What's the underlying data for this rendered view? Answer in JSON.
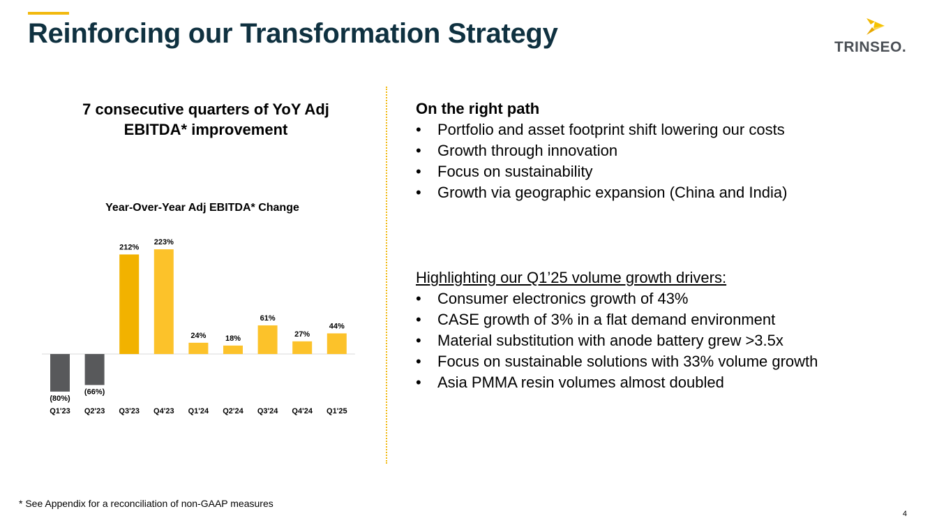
{
  "header": {
    "title": "Reinforcing our Transformation Strategy",
    "logo_text": "TRINSEO",
    "logo_trademark": "."
  },
  "left": {
    "heading_line1": "7 consecutive quarters of YoY Adj",
    "heading_line2": "EBITDA* improvement"
  },
  "chart_data": {
    "type": "bar",
    "title": "Year-Over-Year Adj EBITDA* Change",
    "categories": [
      "Q1'23",
      "Q2'23",
      "Q3'23",
      "Q4'23",
      "Q1'24",
      "Q2'24",
      "Q3'24",
      "Q4'24",
      "Q1'25"
    ],
    "values": [
      -80,
      -66,
      212,
      223,
      24,
      18,
      61,
      27,
      44
    ],
    "data_labels": [
      "(80%)",
      "(66%)",
      "212%",
      "223%",
      "24%",
      "18%",
      "61%",
      "27%",
      "44%"
    ],
    "unit": "%",
    "colors": {
      "negative": "#58595b",
      "highlight": "#f2b200",
      "positive": "#fcc22a",
      "baseline": "#d9d9d9"
    },
    "highlight_index": 2,
    "ylim": [
      -80,
      223
    ],
    "grid": false,
    "legend": "none"
  },
  "right": {
    "section1": {
      "heading": "On the right path",
      "bullets": [
        "Portfolio and asset footprint shift lowering our costs",
        "Growth through innovation",
        "Focus on sustainability",
        "Growth via geographic expansion (China and India)"
      ]
    },
    "section2": {
      "heading": "Highlighting our Q1’25 volume growth drivers:",
      "bullets": [
        "Consumer electronics growth of 43%",
        "CASE growth of 3% in a flat demand environment",
        "Material substitution with anode battery grew >3.5x",
        "Focus on sustainable solutions with 33% volume growth",
        "Asia PMMA resin volumes almost doubled"
      ]
    }
  },
  "footer": {
    "footnote": "* See Appendix for a reconciliation of non-GAAP measures",
    "page_number": "4"
  },
  "colors": {
    "title": "#0f3140",
    "accent": "#f2b90f"
  }
}
